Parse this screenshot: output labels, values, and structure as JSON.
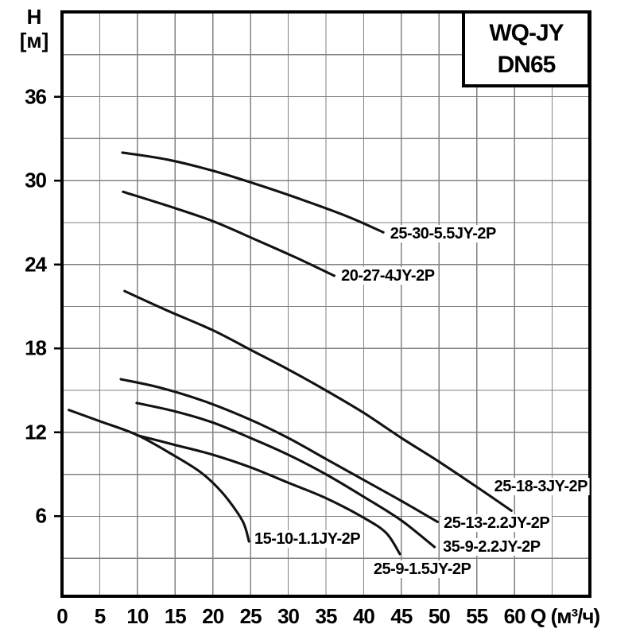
{
  "page": {
    "background": "#ffffff"
  },
  "legend_box": {
    "line1": "WQ-JY",
    "line2": "DN65"
  },
  "chart_data": {
    "type": "line",
    "title": "WQ-JY DN65",
    "xlabel": "Q (м³/ч)",
    "ylabel": "H [м]",
    "ylabel_lines": [
      "H",
      "[м]"
    ],
    "xlim": [
      0,
      70
    ],
    "ylim": [
      0,
      42
    ],
    "x_grid_step": 5,
    "y_grid_step": 3,
    "grid": true,
    "legend_position": "top-right-box",
    "x_ticks": [
      0,
      5,
      10,
      15,
      20,
      25,
      30,
      35,
      40,
      45,
      50,
      55,
      60
    ],
    "y_ticks": [
      36,
      30,
      24,
      18,
      12,
      6
    ],
    "colors": {
      "curve": "#121212",
      "grid": "#828282",
      "axis": "#000000",
      "background": "#ffffff"
    },
    "series": [
      {
        "name": "25-30-5.5JY-2P",
        "points": [
          [
            8,
            32.0
          ],
          [
            14,
            31.5
          ],
          [
            20,
            30.7
          ],
          [
            26,
            29.7
          ],
          [
            32,
            28.6
          ],
          [
            38,
            27.4
          ],
          [
            42.6,
            26.3
          ]
        ],
        "label": {
          "q": 43.2,
          "h": 26.2,
          "anchor": "start"
        }
      },
      {
        "name": "20-27-4JY-2P",
        "points": [
          [
            8.1,
            29.2
          ],
          [
            14,
            28.2
          ],
          [
            20,
            27.1
          ],
          [
            26,
            25.7
          ],
          [
            31,
            24.5
          ],
          [
            36.1,
            23.2
          ]
        ],
        "label": {
          "q": 36.7,
          "h": 23.2,
          "anchor": "start"
        }
      },
      {
        "name": "25-18-3JY-2P",
        "points": [
          [
            8.3,
            22.1
          ],
          [
            14,
            20.7
          ],
          [
            20,
            19.3
          ],
          [
            25,
            17.9
          ],
          [
            30,
            16.5
          ],
          [
            35,
            15.0
          ],
          [
            40,
            13.4
          ],
          [
            45,
            11.6
          ],
          [
            50,
            9.9
          ],
          [
            55,
            8.1
          ],
          [
            59.6,
            6.4
          ]
        ],
        "label": {
          "q": 70,
          "h": 8.1,
          "anchor": "end"
        }
      },
      {
        "name": "25-13-2.2JY-2P",
        "points": [
          [
            7.8,
            15.8
          ],
          [
            13,
            15.2
          ],
          [
            19,
            14.2
          ],
          [
            25,
            12.9
          ],
          [
            30,
            11.6
          ],
          [
            35,
            10.1
          ],
          [
            40,
            8.6
          ],
          [
            45,
            7.1
          ],
          [
            49.8,
            5.6
          ]
        ],
        "label": {
          "q": 50.3,
          "h": 5.5,
          "anchor": "start"
        }
      },
      {
        "name": "35-9-2.2JY-2P",
        "points": [
          [
            9.9,
            14.1
          ],
          [
            15,
            13.5
          ],
          [
            20,
            12.7
          ],
          [
            25,
            11.6
          ],
          [
            30,
            10.4
          ],
          [
            35,
            9.0
          ],
          [
            40,
            7.4
          ],
          [
            45,
            5.7
          ],
          [
            49.4,
            3.8
          ]
        ],
        "label": {
          "q": 50.2,
          "h": 3.8,
          "anchor": "start"
        }
      },
      {
        "name": "15-10-1.1JY-2P",
        "points": [
          [
            0.9,
            13.6
          ],
          [
            5,
            12.8
          ],
          [
            10,
            11.8
          ],
          [
            15,
            10.3
          ],
          [
            18,
            9.3
          ],
          [
            20,
            8.4
          ],
          [
            22,
            7.2
          ],
          [
            24,
            5.6
          ],
          [
            24.8,
            4.2
          ]
        ],
        "label": {
          "q": 25.2,
          "h": 4.4,
          "anchor": "start"
        }
      },
      {
        "name": "25-9-1.5JY-2P",
        "points": [
          [
            9.9,
            11.8
          ],
          [
            15,
            11.1
          ],
          [
            20,
            10.4
          ],
          [
            25,
            9.5
          ],
          [
            30,
            8.4
          ],
          [
            35,
            7.3
          ],
          [
            40,
            5.9
          ],
          [
            43,
            4.8
          ],
          [
            44.8,
            3.3
          ]
        ],
        "label": {
          "q": 41.0,
          "h": 2.2,
          "anchor": "start"
        }
      }
    ]
  }
}
